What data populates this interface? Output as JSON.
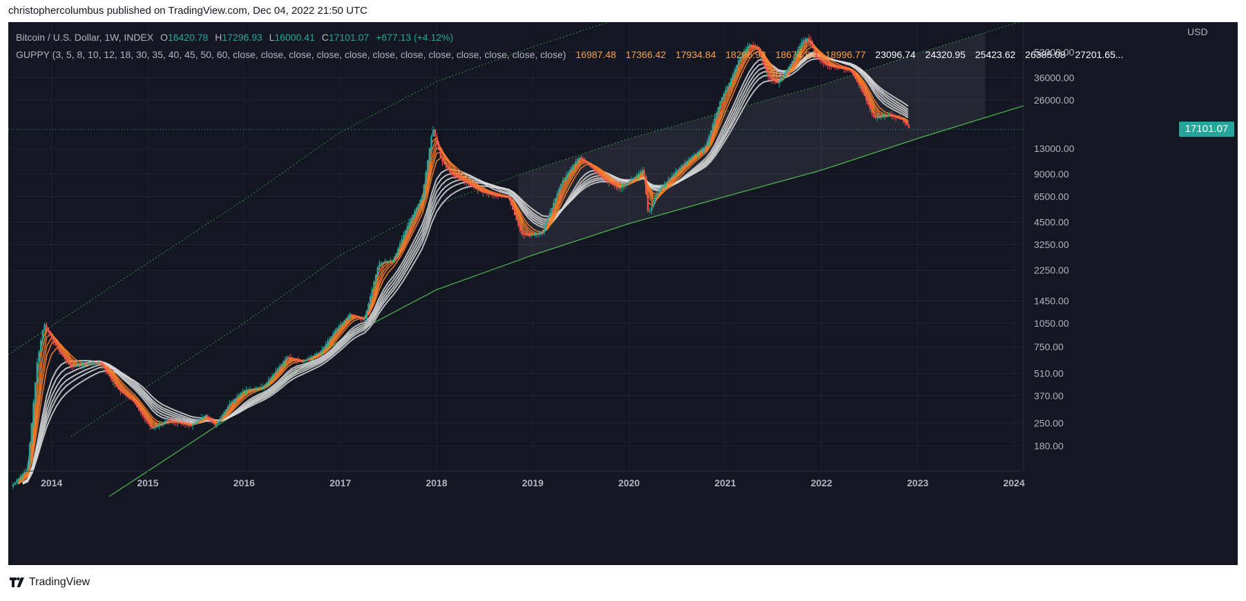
{
  "publisher_line": "christophercolumbus published on TradingView.com, Dec 04, 2022 21:50 UTC",
  "legend": {
    "symbol": "Bitcoin / U.S. Dollar, 1W, INDEX",
    "o_label": "O",
    "o_value": "16420.78",
    "h_label": "H",
    "h_value": "17296.93",
    "l_label": "L",
    "l_value": "16000.41",
    "c_label": "C",
    "c_value": "17101.07",
    "change": "+677.13 (+4.12%)",
    "guppy_label": "GUPPY (3, 5, 8, 10, 12, 18, 30, 35, 40, 45, 50, 60, close, close, close, close, close, close, close, close, close, close, close, close)",
    "guppy_values": [
      "16987.48",
      "17366.42",
      "17934.84",
      "18296.93",
      "18674.84",
      "18996.77",
      "23096.74",
      "24320.95",
      "25423.62",
      "26385.08",
      "27201.65..."
    ]
  },
  "price_tag": "17101.07",
  "colors": {
    "background": "#131722",
    "up": "#26a69a",
    "down": "#ef5350",
    "fast_ema": "#ff7f2a",
    "slow_ema": "#d9d9d9",
    "regression_line": "#4caf50",
    "price_line": "#26a69a"
  },
  "logo_text": "TradingView",
  "chart_data": {
    "type": "line",
    "title": "Bitcoin / U.S. Dollar, 1W, INDEX",
    "scale": "log",
    "y_unit": "USD",
    "y_ticks": [
      180,
      250,
      370,
      510,
      750,
      1050,
      1450,
      2250,
      3250,
      4500,
      6500,
      9000,
      13000,
      26000,
      36000,
      52000
    ],
    "y_tick_labels": [
      "180.00",
      "250.00",
      "370.00",
      "510.00",
      "750.00",
      "1050.00",
      "1450.00",
      "2250.00",
      "3250.00",
      "4500.00",
      "6500.00",
      "9000.00",
      "13000.00",
      "26000.00",
      "36000.00",
      "52000.00"
    ],
    "y_axis_label": "USD",
    "x_ticks": [
      "2014",
      "2015",
      "2016",
      "2017",
      "2018",
      "2019",
      "2020",
      "2021",
      "2022",
      "2023",
      "2024"
    ],
    "xlim": [
      2013.55,
      2024.1
    ],
    "ylim": [
      125,
      80000
    ],
    "last_price": 17101.07,
    "grid": true,
    "series": [
      {
        "type": "price",
        "x": [
          2013.58,
          2013.75,
          2013.85,
          2013.92,
          2014.0,
          2014.08,
          2014.2,
          2014.35,
          2014.5,
          2014.7,
          2014.85,
          2015.04,
          2015.2,
          2015.45,
          2015.6,
          2015.7,
          2015.85,
          2016.0,
          2016.2,
          2016.45,
          2016.6,
          2016.8,
          2016.95,
          2017.1,
          2017.25,
          2017.4,
          2017.55,
          2017.7,
          2017.85,
          2017.96,
          2018.05,
          2018.15,
          2018.3,
          2018.45,
          2018.6,
          2018.75,
          2018.88,
          2018.96,
          2019.1,
          2019.3,
          2019.48,
          2019.6,
          2019.75,
          2019.9,
          2020.05,
          2020.15,
          2020.2,
          2020.3,
          2020.5,
          2020.65,
          2020.8,
          2020.95,
          2021.05,
          2021.15,
          2021.25,
          2021.33,
          2021.45,
          2021.55,
          2021.7,
          2021.8,
          2021.86,
          2021.95,
          2022.05,
          2022.2,
          2022.3,
          2022.42,
          2022.55,
          2022.7,
          2022.85,
          2022.92
        ],
        "y": [
          100,
          130,
          600,
          1050,
          850,
          700,
          560,
          580,
          600,
          400,
          340,
          230,
          260,
          240,
          280,
          240,
          330,
          400,
          420,
          650,
          600,
          700,
          950,
          1200,
          1100,
          2500,
          2600,
          4300,
          6500,
          17500,
          11000,
          9000,
          8000,
          7000,
          6600,
          6400,
          3800,
          3700,
          3900,
          8000,
          11500,
          10000,
          8200,
          7300,
          8500,
          9600,
          5000,
          7000,
          9500,
          11500,
          13500,
          26000,
          34000,
          48000,
          58000,
          56000,
          36000,
          33000,
          46000,
          61000,
          64000,
          48000,
          43000,
          41000,
          40000,
          30000,
          20000,
          21000,
          19500,
          17101
        ]
      },
      {
        "type": "regression",
        "x": [
          2015.0,
          2016.0,
          2017.0,
          2018.0,
          2019.0,
          2020.0,
          2021.0,
          2022.0,
          2023.0,
          2024.0
        ],
        "y": [
          125,
          310,
          820,
          1700,
          2800,
          4400,
          6500,
          9500,
          15000,
          23000
        ]
      }
    ]
  }
}
